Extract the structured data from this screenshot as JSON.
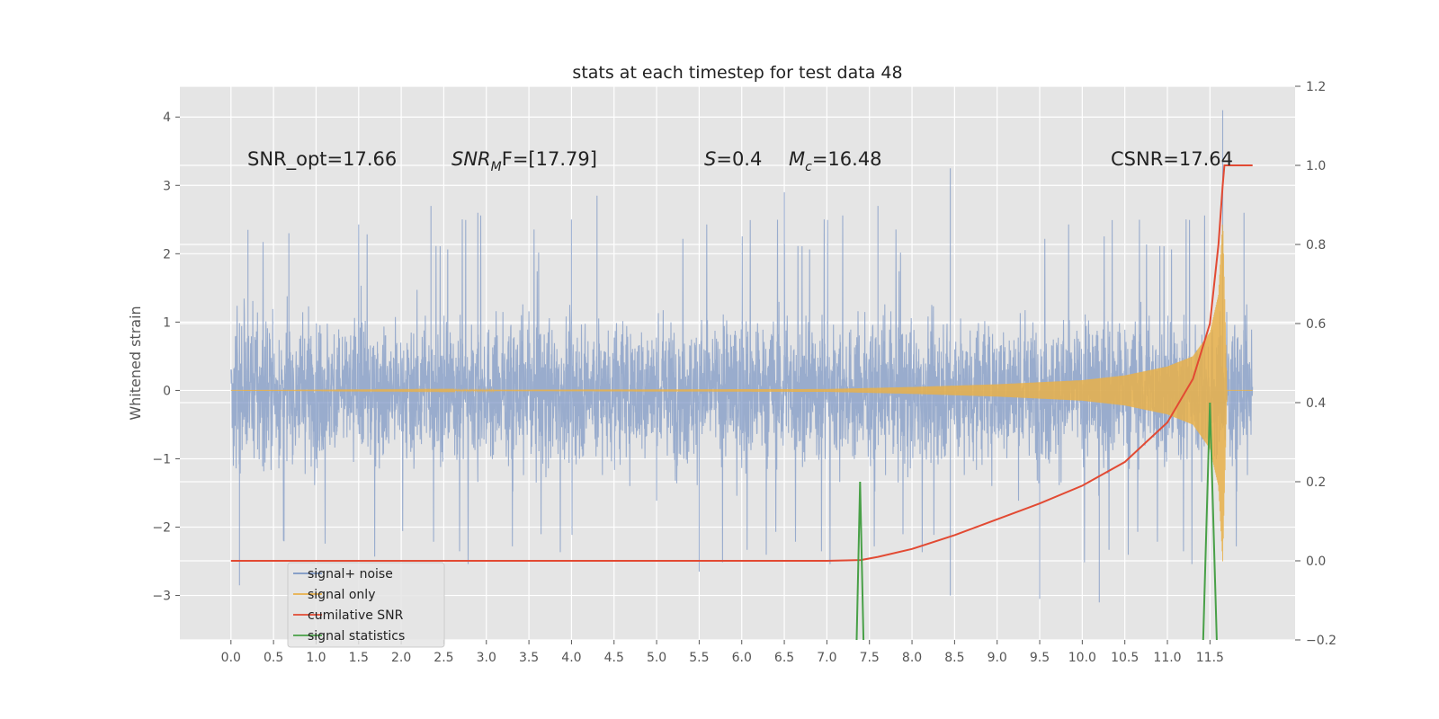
{
  "chart_data": {
    "type": "line",
    "title": "stats at each timestep for test data 48",
    "xlabel": "",
    "ylabel": "Whitened strain",
    "xlim": [
      -0.6,
      12.5
    ],
    "ylim": [
      -3.65,
      4.45
    ],
    "y2lim": [
      -0.2,
      1.2
    ],
    "x_ticks": [
      0.0,
      0.5,
      1.0,
      1.5,
      2.0,
      2.5,
      3.0,
      3.5,
      4.0,
      4.5,
      5.0,
      5.5,
      6.0,
      6.5,
      7.0,
      7.5,
      8.0,
      8.5,
      9.0,
      9.5,
      10.0,
      10.5,
      11.0,
      11.5
    ],
    "x_tick_labels": [
      "0.0",
      "0.5",
      "1.0",
      "1.5",
      "2.0",
      "2.5",
      "3.0",
      "3.5",
      "4.0",
      "4.5",
      "5.0",
      "5.5",
      "6.0",
      "6.5",
      "7.0",
      "7.5",
      "8.0",
      "8.5",
      "9.0",
      "9.5",
      "10.0",
      "10.5",
      "11.0",
      "11.5"
    ],
    "y_ticks": [
      4,
      3,
      2,
      1,
      0,
      -1,
      -2,
      -3
    ],
    "y_tick_labels": [
      "4",
      "3",
      "2",
      "1",
      "0",
      "−1",
      "−2",
      "−3"
    ],
    "y2_ticks": [
      1.2,
      1.0,
      0.8,
      0.6,
      0.4,
      0.2,
      0.0,
      -0.2
    ],
    "y2_tick_labels": [
      "1.2",
      "1.0",
      "0.8",
      "0.6",
      "0.4",
      "0.2",
      "0.0",
      "−0.2"
    ],
    "grid": true,
    "legend_position": "lower-left",
    "legend": [
      "signal+ noise",
      "signal only",
      "cumilative SNR",
      "signal statistics"
    ],
    "annotations": {
      "snr_opt": "SNR_opt=17.66",
      "snr_mf_base": "SNR",
      "snr_mf_sub": "M",
      "snr_mf_rest": "F=[17.79]",
      "s_label": "S",
      "s_value": "=0.4",
      "mc_label": "M",
      "mc_sub": "c",
      "mc_value": "=16.48",
      "csnr": "CSNR=17.64"
    },
    "series": [
      {
        "name": "signal+ noise",
        "axis": "left",
        "style": "noise",
        "x_range": [
          0.0,
          12.0
        ],
        "envelope_typical": [
          -1.3,
          1.3
        ],
        "peaks": [
          {
            "x": 0.1,
            "y": -2.85
          },
          {
            "x": 0.2,
            "y": 2.35
          },
          {
            "x": 0.68,
            "y": 2.3
          },
          {
            "x": 2.35,
            "y": 2.7
          },
          {
            "x": 2.9,
            "y": 2.6
          },
          {
            "x": 4.0,
            "y": 2.5
          },
          {
            "x": 4.3,
            "y": 2.85
          },
          {
            "x": 5.5,
            "y": -2.65
          },
          {
            "x": 6.5,
            "y": 2.9
          },
          {
            "x": 7.6,
            "y": 2.7
          },
          {
            "x": 8.45,
            "y": 3.25
          },
          {
            "x": 8.45,
            "y": -3.0
          },
          {
            "x": 9.5,
            "y": -3.05
          },
          {
            "x": 10.2,
            "y": -3.1
          },
          {
            "x": 11.65,
            "y": 4.1
          },
          {
            "x": 11.9,
            "y": 2.6
          }
        ],
        "color": "#7b96c4"
      },
      {
        "name": "signal only",
        "axis": "left",
        "style": "chirp",
        "x": [
          0.0,
          7.0,
          8.0,
          9.0,
          10.0,
          10.5,
          11.0,
          11.3,
          11.5,
          11.6,
          11.65,
          11.7,
          12.0
        ],
        "amplitude": [
          0.0,
          0.02,
          0.05,
          0.09,
          0.15,
          0.22,
          0.35,
          0.5,
          0.85,
          1.4,
          2.5,
          0.0,
          0.0
        ],
        "color": "#e8b04a"
      },
      {
        "name": "cumilative SNR",
        "axis": "right",
        "x": [
          0.0,
          7.0,
          7.4,
          7.6,
          8.0,
          8.5,
          9.0,
          9.5,
          10.0,
          10.5,
          11.0,
          11.3,
          11.5,
          11.6,
          11.65,
          11.67,
          12.0
        ],
        "y": [
          0.0,
          0.0,
          0.002,
          0.01,
          0.03,
          0.065,
          0.105,
          0.145,
          0.19,
          0.25,
          0.35,
          0.46,
          0.6,
          0.8,
          0.95,
          1.0,
          1.0
        ],
        "color": "#e24a33"
      },
      {
        "name": "signal statistics",
        "axis": "right",
        "segments": [
          {
            "x": [
              7.35,
              7.39,
              7.43
            ],
            "y": [
              -0.2,
              0.2,
              -0.2
            ]
          },
          {
            "x": [
              11.42,
              11.5,
              11.58
            ],
            "y": [
              -0.2,
              0.4,
              -0.2
            ]
          }
        ],
        "color": "#48a047"
      }
    ]
  },
  "colors": {
    "axes_bg": "#e5e5e5",
    "grid": "#ffffff",
    "noise": "#7b96c4",
    "signal": "#e8b04a",
    "cumulative": "#e24a33",
    "statistics": "#48a047"
  }
}
